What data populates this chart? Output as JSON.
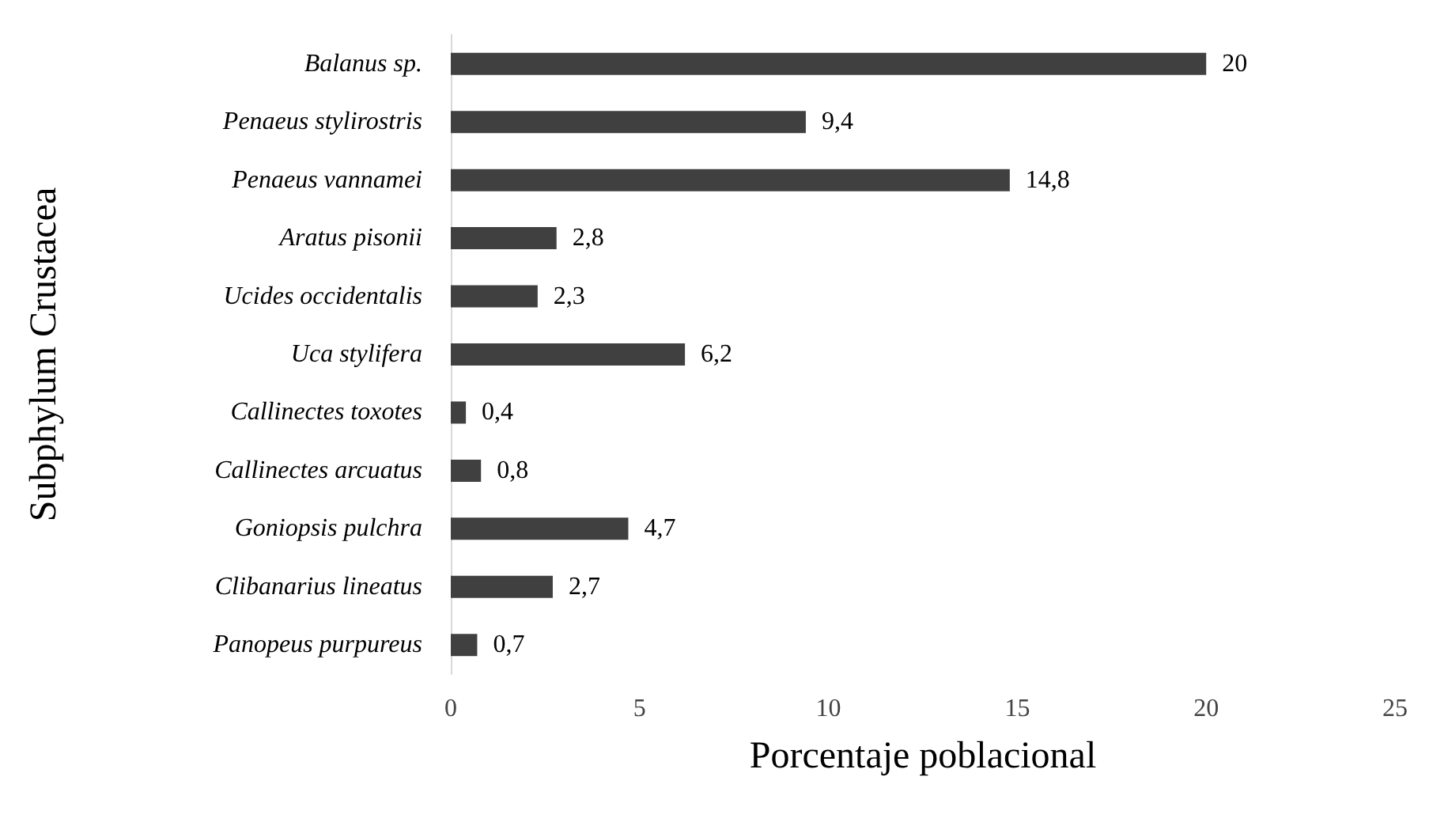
{
  "chart_data": {
    "type": "bar",
    "orientation": "horizontal",
    "xlabel": "Porcentaje poblacional",
    "ylabel": "Subphylum Crustacea",
    "categories": [
      "Balanus sp.",
      "Penaeus stylirostris",
      "Penaeus vannamei",
      "Aratus pisonii",
      "Ucides occidentalis",
      "Uca stylifera",
      "Callinectes toxotes",
      "Callinectes arcuatus",
      "Goniopsis pulchra",
      "Clibanarius lineatus",
      "Panopeus purpureus"
    ],
    "values": [
      20,
      9.4,
      14.8,
      2.8,
      2.3,
      6.2,
      0.4,
      0.8,
      4.7,
      2.7,
      0.7
    ],
    "value_labels": [
      "20",
      "9,4",
      "14,8",
      "2,8",
      "2,3",
      "6,2",
      "0,4",
      "0,8",
      "4,7",
      "2,7",
      "0,7"
    ],
    "color": "#404040",
    "xlim": [
      0,
      25
    ],
    "xticks": [
      0,
      5,
      10,
      15,
      20,
      25
    ]
  }
}
